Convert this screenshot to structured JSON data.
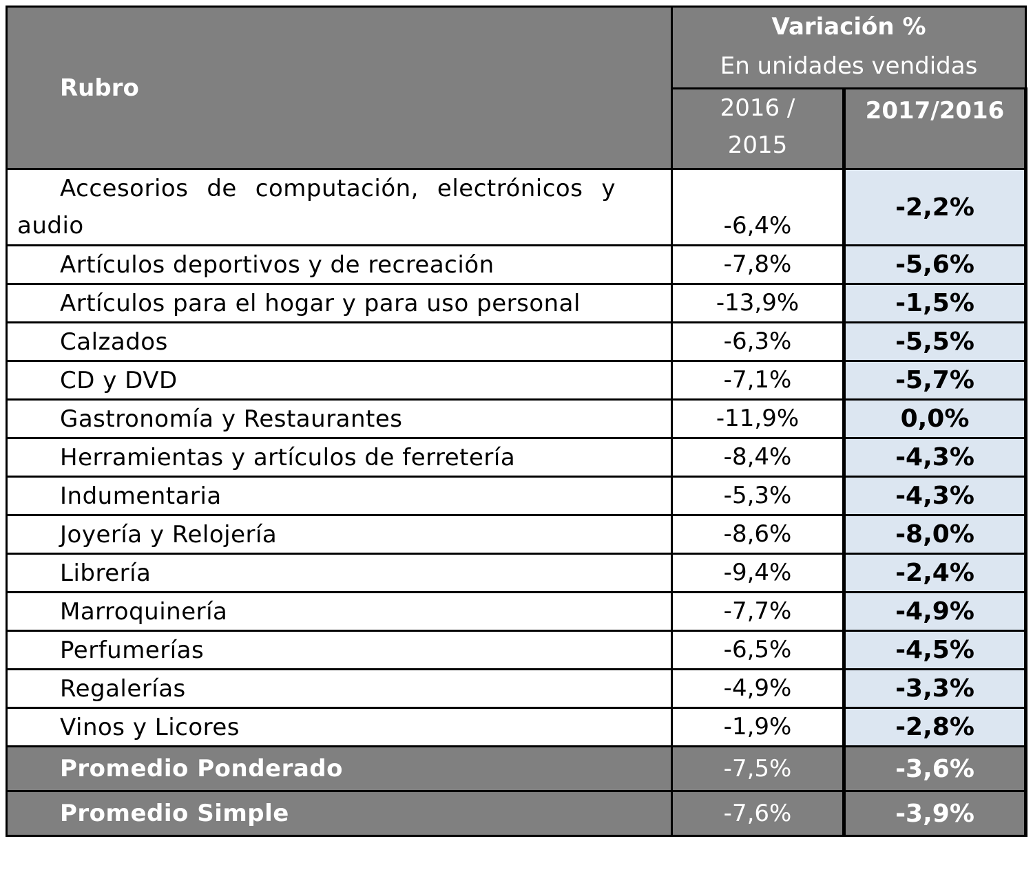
{
  "chart_data": {
    "type": "table",
    "columns": {
      "rubro": "Rubro",
      "group_title": "Variación %",
      "group_subtitle": "En unidades vendidas",
      "y1": "2016 / 2015",
      "y2": "2017/2016"
    },
    "rows": [
      {
        "rubro": "Accesorios de computación, electrónicos y audio",
        "v2016": "-6,4%",
        "v2017": "-2,2%"
      },
      {
        "rubro": "Artículos deportivos y de recreación",
        "v2016": "-7,8%",
        "v2017": "-5,6%"
      },
      {
        "rubro": "Artículos para el hogar y para uso personal",
        "v2016": "-13,9%",
        "v2017": "-1,5%"
      },
      {
        "rubro": "Calzados",
        "v2016": "-6,3%",
        "v2017": "-5,5%"
      },
      {
        "rubro": "CD y DVD",
        "v2016": "-7,1%",
        "v2017": "-5,7%"
      },
      {
        "rubro": "Gastronomía y Restaurantes",
        "v2016": "-11,9%",
        "v2017": "0,0%"
      },
      {
        "rubro": "Herramientas y artículos de ferretería",
        "v2016": "-8,4%",
        "v2017": "-4,3%"
      },
      {
        "rubro": "Indumentaria",
        "v2016": "-5,3%",
        "v2017": "-4,3%"
      },
      {
        "rubro": "Joyería y Relojería",
        "v2016": "-8,6%",
        "v2017": "-8,0%"
      },
      {
        "rubro": "Librería",
        "v2016": "-9,4%",
        "v2017": "-2,4%"
      },
      {
        "rubro": "Marroquinería",
        "v2016": "-7,7%",
        "v2017": "-4,9%"
      },
      {
        "rubro": "Perfumerías",
        "v2016": "-6,5%",
        "v2017": "-4,5%"
      },
      {
        "rubro": "Regalerías",
        "v2016": "-4,9%",
        "v2017": "-3,3%"
      },
      {
        "rubro": "Vinos y Licores",
        "v2016": "-1,9%",
        "v2017": "-2,8%"
      }
    ],
    "totals": [
      {
        "rubro": "Promedio Ponderado",
        "v2016": "-7,5%",
        "v2017": "-3,6%"
      },
      {
        "rubro": "Promedio Simple",
        "v2016": "-7,6%",
        "v2017": "-3,9%"
      }
    ]
  },
  "colors": {
    "header_bg": "#808080",
    "highlight_bg": "#dce6f1"
  }
}
